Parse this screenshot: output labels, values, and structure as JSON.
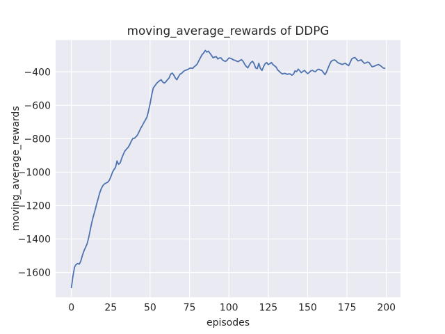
{
  "figure": {
    "title": "moving_average_rewards of DDPG",
    "xlabel": "episodes",
    "ylabel": "moving_average_rewards"
  },
  "colors": {
    "line": "#4c72b0",
    "plot_background": "#eaeaf2",
    "gridline": "#ffffff",
    "figure_background": "#ffffff",
    "text": "#262626"
  },
  "chart_data": {
    "type": "line",
    "title": "moving_average_rewards of DDPG",
    "xlabel": "episodes",
    "ylabel": "moving_average_rewards",
    "legend": "none",
    "grid": true,
    "xlim": [
      -10,
      208.95
    ],
    "ylim": [
      -1748,
      -210
    ],
    "x_ticks": [
      0,
      25,
      50,
      75,
      100,
      125,
      150,
      175,
      200
    ],
    "x_tick_labels": [
      "0",
      "25",
      "50",
      "75",
      "100",
      "125",
      "150",
      "175",
      "200"
    ],
    "y_ticks": [
      -400,
      -600,
      -800,
      -1000,
      -1200,
      -1400,
      -1600
    ],
    "y_tick_labels": [
      "−400",
      "−600",
      "−800",
      "−1000",
      "−1200",
      "−1400",
      "−1600"
    ],
    "series": [
      {
        "name": "moving_average_rewards",
        "x_start": 0,
        "x_step": 1,
        "values": [
          -1690,
          -1622,
          -1568,
          -1552,
          -1546,
          -1550,
          -1532,
          -1498,
          -1470,
          -1450,
          -1428,
          -1390,
          -1345,
          -1300,
          -1262,
          -1230,
          -1192,
          -1158,
          -1124,
          -1098,
          -1080,
          -1070,
          -1065,
          -1060,
          -1050,
          -1028,
          -1002,
          -985,
          -972,
          -933,
          -953,
          -944,
          -916,
          -893,
          -873,
          -862,
          -852,
          -836,
          -816,
          -799,
          -797,
          -789,
          -777,
          -757,
          -738,
          -722,
          -703,
          -688,
          -670,
          -632,
          -590,
          -538,
          -496,
          -484,
          -470,
          -461,
          -453,
          -447,
          -461,
          -467,
          -459,
          -447,
          -437,
          -414,
          -407,
          -419,
          -437,
          -447,
          -429,
          -414,
          -409,
          -399,
          -392,
          -389,
          -385,
          -379,
          -377,
          -379,
          -369,
          -362,
          -351,
          -332,
          -314,
          -297,
          -287,
          -272,
          -282,
          -276,
          -289,
          -302,
          -316,
          -311,
          -309,
          -323,
          -317,
          -316,
          -329,
          -335,
          -337,
          -329,
          -317,
          -319,
          -323,
          -329,
          -332,
          -336,
          -339,
          -332,
          -327,
          -337,
          -354,
          -367,
          -376,
          -359,
          -344,
          -337,
          -351,
          -377,
          -381,
          -349,
          -379,
          -392,
          -369,
          -351,
          -344,
          -357,
          -351,
          -344,
          -357,
          -364,
          -372,
          -389,
          -397,
          -406,
          -413,
          -409,
          -410,
          -415,
          -412,
          -413,
          -420,
          -414,
          -394,
          -399,
          -384,
          -394,
          -405,
          -397,
          -391,
          -402,
          -411,
          -404,
          -394,
          -391,
          -397,
          -399,
          -389,
          -384,
          -389,
          -391,
          -404,
          -417,
          -401,
          -377,
          -354,
          -337,
          -331,
          -328,
          -334,
          -344,
          -349,
          -352,
          -356,
          -351,
          -349,
          -357,
          -363,
          -344,
          -323,
          -317,
          -314,
          -324,
          -335,
          -331,
          -328,
          -339,
          -349,
          -346,
          -342,
          -344,
          -359,
          -370,
          -367,
          -363,
          -359,
          -356,
          -362,
          -369,
          -377,
          -379
        ]
      }
    ]
  }
}
